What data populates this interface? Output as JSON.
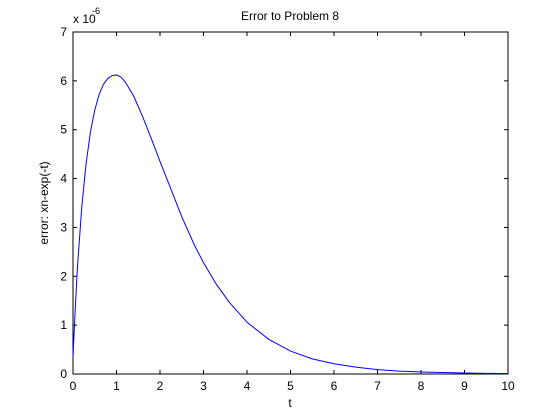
{
  "chart_data": {
    "type": "line",
    "title": "Error to Problem 8",
    "xlabel": "t",
    "ylabel": "error: xn-exp(-t)",
    "y_multiplier_base": "x 10",
    "y_multiplier_exponent": "-6",
    "xlim": [
      0,
      10
    ],
    "ylim": [
      0,
      7
    ],
    "x_ticks": [
      "0",
      "1",
      "2",
      "3",
      "4",
      "5",
      "6",
      "7",
      "8",
      "9",
      "10"
    ],
    "y_ticks": [
      "0",
      "1",
      "2",
      "3",
      "4",
      "5",
      "6",
      "7"
    ],
    "grid": false,
    "series": [
      {
        "color": "#0000ff",
        "x": [
          0,
          0.05,
          0.1,
          0.2,
          0.3,
          0.4,
          0.5,
          0.6,
          0.7,
          0.8,
          0.9,
          1.0,
          1.1,
          1.2,
          1.4,
          1.6,
          1.8,
          2.0,
          2.2,
          2.5,
          2.8,
          3.0,
          3.3,
          3.6,
          4.0,
          4.5,
          5.0,
          5.5,
          6.0,
          6.5,
          7.0,
          7.5,
          8.0,
          8.5,
          9.0,
          9.5,
          10.0
        ],
        "y": [
          0.35,
          1.3,
          2.15,
          3.4,
          4.3,
          4.95,
          5.4,
          5.72,
          5.93,
          6.05,
          6.11,
          6.12,
          6.08,
          5.98,
          5.68,
          5.27,
          4.82,
          4.35,
          3.9,
          3.22,
          2.62,
          2.28,
          1.83,
          1.46,
          1.06,
          0.71,
          0.47,
          0.31,
          0.21,
          0.14,
          0.09,
          0.06,
          0.04,
          0.03,
          0.02,
          0.014,
          0.01
        ]
      }
    ]
  }
}
